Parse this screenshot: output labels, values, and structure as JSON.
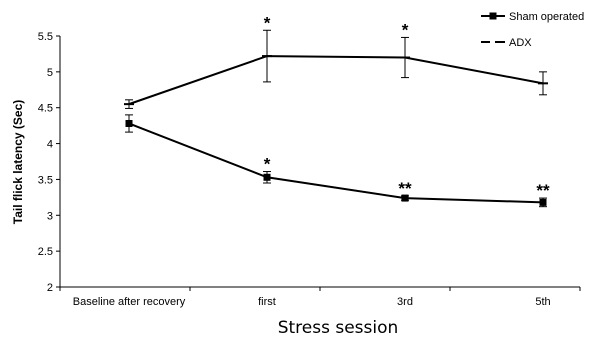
{
  "chart_data": {
    "type": "line",
    "categories": [
      "Baseline after recovery",
      "first",
      "3rd",
      "5th"
    ],
    "xlabel": "Stress session",
    "ylabel": "Tail flick latency (Sec)",
    "ylim": [
      2,
      5.5
    ],
    "yticks": [
      "2",
      "2.5",
      "3",
      "3.5",
      "4",
      "4.5",
      "5",
      "5.5"
    ],
    "grid": false,
    "legend_position": "top-right",
    "series": [
      {
        "name": "Sham operated",
        "values": [
          4.28,
          3.53,
          3.24,
          3.18
        ],
        "errors": [
          0.12,
          0.08,
          0.03,
          0.06
        ],
        "marker": "square",
        "line_style": "solid",
        "error_direction": "both",
        "significance": [
          "",
          "*",
          "**",
          "**"
        ]
      },
      {
        "name": "ADX",
        "values": [
          4.55,
          5.22,
          5.2,
          4.84
        ],
        "errors": [
          0.06,
          0.36,
          0.28,
          0.16
        ],
        "marker": "dash",
        "line_style": "solid",
        "error_direction": "both",
        "significance": [
          "",
          "*",
          "*",
          ""
        ]
      }
    ]
  }
}
